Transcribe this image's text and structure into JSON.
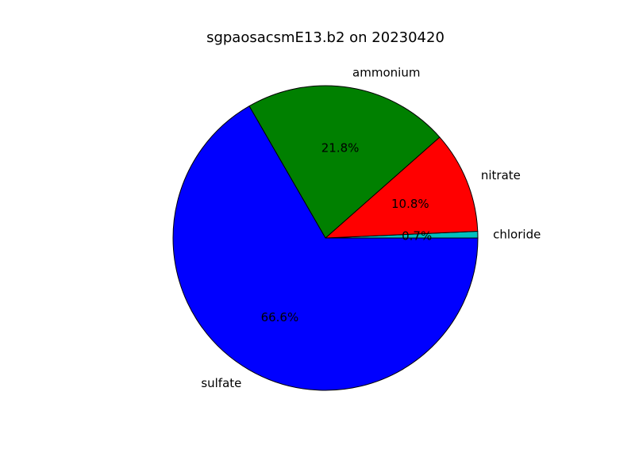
{
  "chart_data": {
    "type": "pie",
    "title": "sgpaosacsmE13.b2 on 20230420",
    "slices": [
      {
        "label": "chloride",
        "value": 0.7,
        "pct_label": "0.7%",
        "color": "#00bfbf"
      },
      {
        "label": "nitrate",
        "value": 10.8,
        "pct_label": "10.8%",
        "color": "#ff0000"
      },
      {
        "label": "ammonium",
        "value": 21.8,
        "pct_label": "21.8%",
        "color": "#008000"
      },
      {
        "label": "sulfate",
        "value": 66.6,
        "pct_label": "66.6%",
        "color": "#0000ff"
      }
    ],
    "start_angle_deg": 0,
    "direction": "counterclockwise",
    "edge_color": "#000000",
    "legend": "none"
  }
}
